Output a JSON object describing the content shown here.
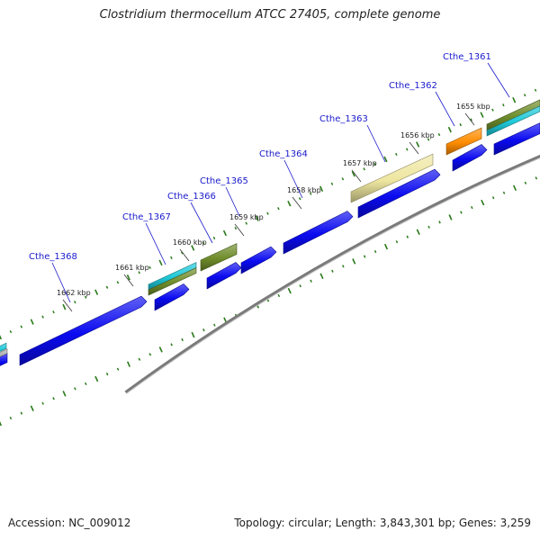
{
  "title": "Clostridium thermocellum ATCC 27405, complete genome",
  "footer": {
    "accession": "Accession: NC_009012",
    "topology": "Topology: circular; Length: 3,843,301 bp; Genes: 3,259"
  },
  "colors": {
    "cds": "#0a0af0",
    "backbone": "#7a7a7a",
    "tick": "#2a7a1a",
    "gene_label": "#1a1acc",
    "feature_cyan": "#1ec8d8",
    "feature_olive": "#6e8c2a",
    "feature_khaki": "#eee6a0",
    "feature_orange": "#ff8c00"
  },
  "kbp_ticks": [
    "1655 kbp",
    "1656 kbp",
    "1657 kbp",
    "1658 kbp",
    "1659 kbp",
    "1660 kbp",
    "1661 kbp",
    "1662 kbp"
  ],
  "genes": [
    "Cthe_1361",
    "Cthe_1362",
    "Cthe_1363",
    "Cthe_1364",
    "Cthe_1365",
    "Cthe_1366",
    "Cthe_1367",
    "Cthe_1368"
  ]
}
